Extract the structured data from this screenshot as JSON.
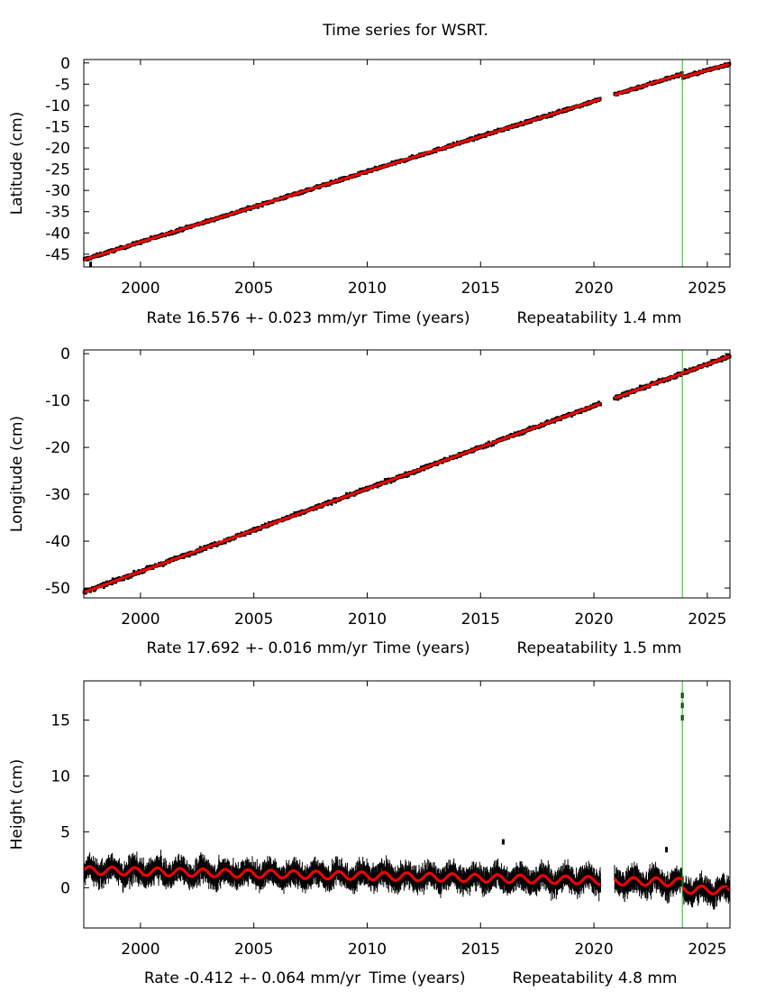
{
  "title": "Time series for WSRT.",
  "colors": {
    "data": "#000000",
    "fit": "#ff0000",
    "event_line": "#00cc00",
    "axes": "#000000"
  },
  "chart_data": [
    {
      "type": "scatter",
      "ylabel": "Latitude (cm)",
      "xlabel_parts": [
        "Rate 16.576 +- 0.023 mm/yr",
        "Time (years)",
        "Repeatability 1.4 mm"
      ],
      "xlim": [
        1997.5,
        2026.0
      ],
      "ylim": [
        -48,
        0.8
      ],
      "xticks": [
        "2000",
        "2005",
        "2010",
        "2015",
        "2020",
        "2025"
      ],
      "yticks": [
        "0",
        "-5",
        "-10",
        "-15",
        "-20",
        "-25",
        "-30",
        "-35",
        "-40",
        "-45"
      ],
      "event_line_x": 2023.9,
      "noise_cm": 0.3,
      "annual_amplitude_cm": 0,
      "fit_segments": [
        [
          [
            1997.5,
            -46.3
          ],
          [
            2020.3,
            -8.5
          ]
        ],
        [
          [
            2020.9,
            -7.5
          ],
          [
            2023.9,
            -2.6
          ]
        ],
        [
          [
            2023.9,
            -3.4
          ],
          [
            2026.0,
            -0.2
          ]
        ]
      ],
      "outliers": [
        [
          1997.8,
          -47.4
        ]
      ]
    },
    {
      "type": "scatter",
      "ylabel": "Longitude (cm)",
      "xlabel_parts": [
        "Rate 17.692 +- 0.016 mm/yr",
        "Time (years)",
        "Repeatability 1.5 mm"
      ],
      "xlim": [
        1997.5,
        2026.0
      ],
      "ylim": [
        -52.1,
        0.8
      ],
      "xticks": [
        "2000",
        "2005",
        "2010",
        "2015",
        "2020",
        "2025"
      ],
      "yticks": [
        "0",
        "-10",
        "-20",
        "-30",
        "-40",
        "-50"
      ],
      "event_line_x": 2023.9,
      "noise_cm": 0.35,
      "annual_amplitude_cm": 0,
      "fit_segments": [
        [
          [
            1997.5,
            -50.9
          ],
          [
            2020.3,
            -10.6
          ]
        ],
        [
          [
            2020.9,
            -9.5
          ],
          [
            2023.9,
            -4.2
          ]
        ],
        [
          [
            2023.9,
            -4.2
          ],
          [
            2026.0,
            -0.5
          ]
        ]
      ],
      "outliers": []
    },
    {
      "type": "scatter",
      "ylabel": "Height (cm)",
      "xlabel_parts": [
        "Rate -0.412 +- 0.064 mm/yr",
        "Time (years)",
        "Repeatability 4.8 mm"
      ],
      "xlim": [
        1997.5,
        2026.0
      ],
      "ylim": [
        -3.6,
        18.5
      ],
      "xticks": [
        "2000",
        "2005",
        "2010",
        "2015",
        "2020",
        "2025"
      ],
      "yticks": [
        "0",
        "5",
        "10",
        "15"
      ],
      "event_line_x": 2023.9,
      "noise_cm": 0.7,
      "annual_amplitude_cm": 0.35,
      "fit_segments": [
        [
          [
            1997.5,
            1.55
          ],
          [
            2020.3,
            0.65
          ]
        ],
        [
          [
            2020.9,
            0.6
          ],
          [
            2023.9,
            0.5
          ]
        ],
        [
          [
            2023.9,
            -0.15
          ],
          [
            2026.0,
            -0.25
          ]
        ]
      ],
      "outliers": [
        [
          2016.0,
          4.1
        ],
        [
          2023.2,
          3.4
        ],
        [
          2023.9,
          17.2
        ],
        [
          2023.9,
          15.2
        ],
        [
          2023.9,
          16.3
        ]
      ]
    }
  ]
}
